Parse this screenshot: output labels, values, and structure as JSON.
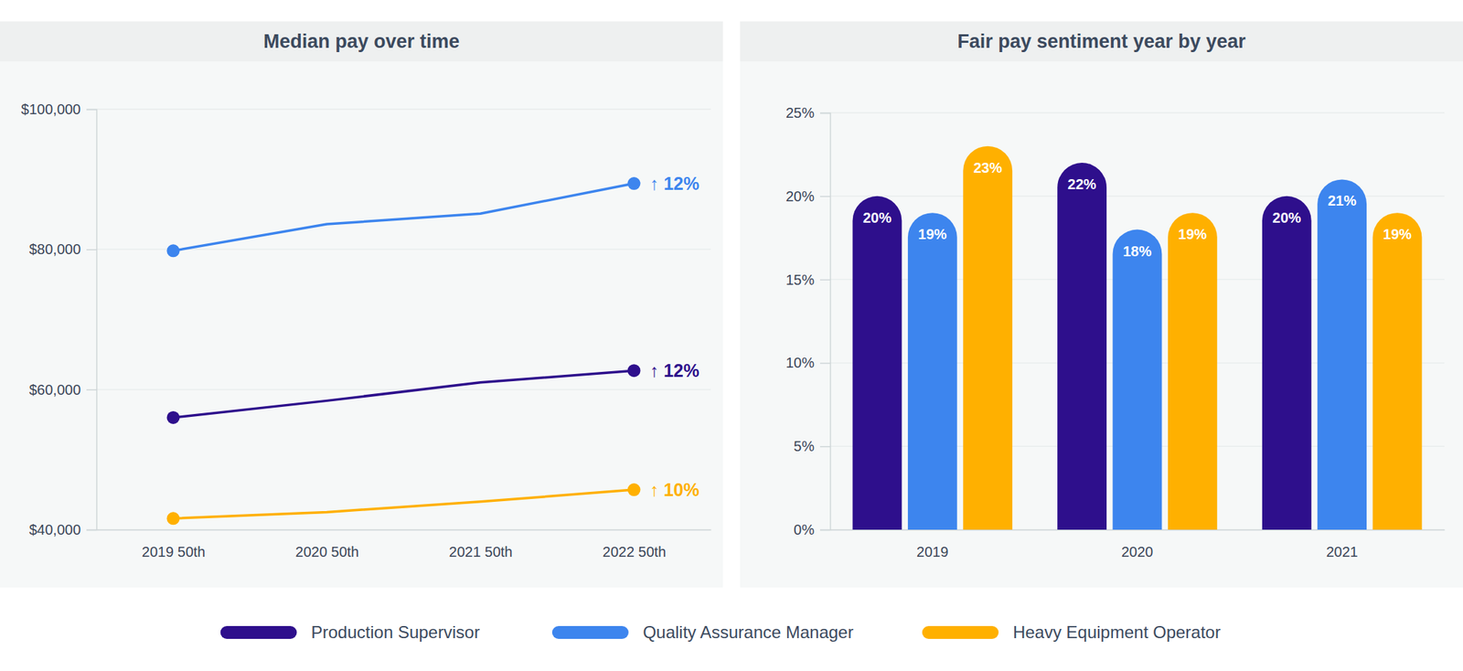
{
  "chart_data": [
    {
      "type": "line",
      "title": "Median pay over time",
      "categories": [
        "2019 50th",
        "2020 50th",
        "2021 50th",
        "2022 50th"
      ],
      "series": [
        {
          "name": "Production Supervisor",
          "color": "#2e0f8c",
          "values": [
            56000,
            58400,
            61000,
            62700
          ],
          "annotation": "↑ 12%"
        },
        {
          "name": "Quality Assurance Manager",
          "color": "#3d85ee",
          "values": [
            79800,
            83600,
            85100,
            89400
          ],
          "annotation": "↑ 12%"
        },
        {
          "name": "Heavy Equipment Operator",
          "color": "#ffb000",
          "values": [
            41600,
            42500,
            44000,
            45700
          ],
          "annotation": "↑ 10%"
        }
      ],
      "ylim": [
        40000,
        100000
      ],
      "yticks": [
        {
          "value": 40000,
          "label": "$40,000"
        },
        {
          "value": 60000,
          "label": "$60,000"
        },
        {
          "value": 80000,
          "label": "$80,000"
        },
        {
          "value": 100000,
          "label": "$100,000"
        }
      ],
      "grid": true,
      "marker": "circle",
      "legend": "bottom"
    },
    {
      "type": "bar",
      "title": "Fair pay sentiment year by year",
      "categories": [
        "2019",
        "2020",
        "2021"
      ],
      "series": [
        {
          "color": "#2e0f8c",
          "values": [
            20,
            22,
            20
          ],
          "value_labels": [
            "20%",
            "22%",
            "20%"
          ]
        },
        {
          "color": "#3d85ee",
          "values": [
            19,
            18,
            21
          ],
          "value_labels": [
            "19%",
            "18%",
            "21%"
          ]
        },
        {
          "color": "#ffb000",
          "values": [
            23,
            19,
            19
          ],
          "value_labels": [
            "23%",
            "19%",
            "19%"
          ]
        }
      ],
      "ylim": [
        0,
        25
      ],
      "yticks": [
        {
          "value": 0,
          "label": "0%"
        },
        {
          "value": 5,
          "label": "5%"
        },
        {
          "value": 10,
          "label": "10%"
        },
        {
          "value": 15,
          "label": "15%"
        },
        {
          "value": 20,
          "label": "20%"
        },
        {
          "value": 25,
          "label": "25%"
        }
      ],
      "grid": true,
      "data_labels": true
    }
  ]
}
